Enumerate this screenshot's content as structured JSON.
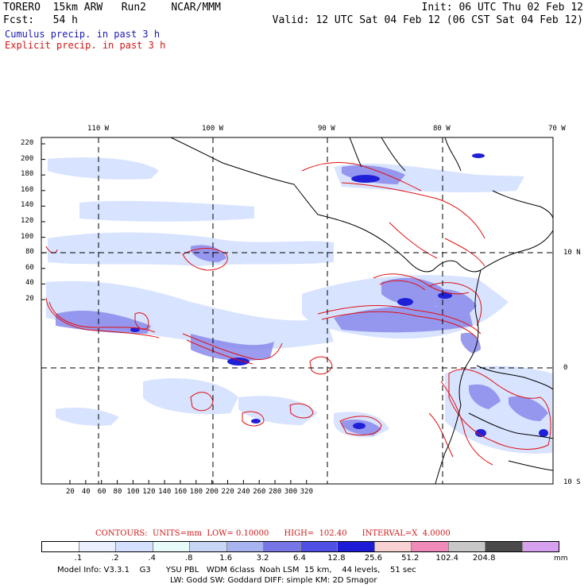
{
  "header": {
    "title": "TORERO  15km ARW   Run2    NCAR/MMM",
    "init": "Init: 06 UTC Thu 02 Feb 12",
    "fcst": "Fcst:   54 h",
    "valid": "Valid: 12 UTC Sat 04 Feb 12 (06 CST Sat 04 Feb 12)",
    "cumulus": "Cumulus precip. in past 3 h",
    "explicit": "Explicit precip. in past 3 h"
  },
  "map": {
    "lon_labels": [
      "110 W",
      "100 W",
      "90 W",
      "80 W",
      "70 W"
    ],
    "lat_labels": [
      "10 N",
      "0",
      "10 S"
    ],
    "y_ticks": [
      "220",
      "200",
      "180",
      "160",
      "140",
      "120",
      "100",
      "80",
      "60",
      "40",
      "20"
    ],
    "x_ticks": [
      "20",
      "40",
      "60",
      "80",
      "100",
      "120",
      "140",
      "160",
      "180",
      "200",
      "220",
      "240",
      "260",
      "280",
      "300",
      "320"
    ]
  },
  "contours": {
    "label": "CONTOURS:  UNITS=mm  LOW= 0.10000      HIGH=  102.40      INTERVAL=X  4.0000"
  },
  "colorbar": {
    "labels": [
      ".1",
      ".2",
      ".4",
      ".8",
      "1.6",
      "3.2",
      "6.4",
      "12.8",
      "25.6",
      "51.2",
      "102.4",
      "204.8"
    ],
    "unit": "mm",
    "colors": [
      "#ffffff",
      "#eaf0ff",
      "#d4e0ff",
      "#e6fbfa",
      "#c8d6f6",
      "#a8b4f0",
      "#7676e6",
      "#5050e6",
      "#1c1cd6",
      "#f8d2d2",
      "#f08ab8",
      "#c8c8c8",
      "#4a4a4a",
      "#d6a2f0"
    ]
  },
  "footer": {
    "line1": "Model Info: V3.3.1    G3      YSU PBL   WDM 6class  Noah LSM  15 km,    44 levels,    51 sec",
    "line2": "LW: Godd SW: Goddard DIFF: simple KM: 2D Smagor"
  },
  "colors": {
    "cumulus": "#1a1ab4",
    "explicit": "#d01818",
    "precip_light": "#d4e0ff",
    "precip_mid": "#7676e6",
    "precip_heavy": "#1c1cd6"
  }
}
